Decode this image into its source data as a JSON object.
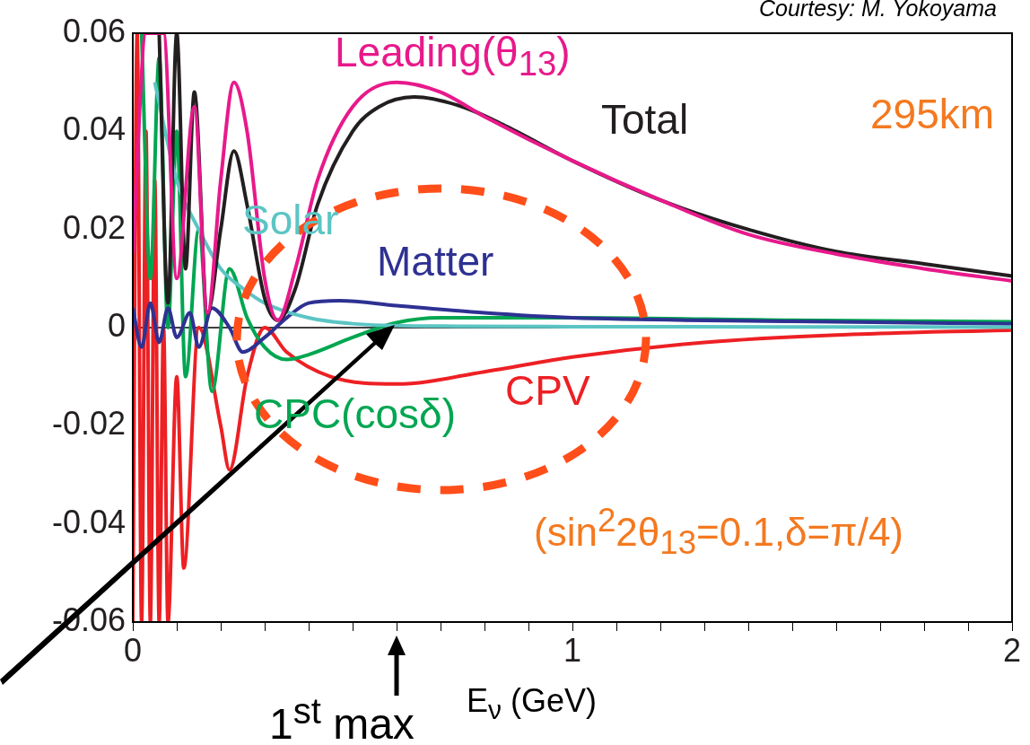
{
  "chart_data": {
    "type": "line",
    "xlabel": "E$_{ν}$ (GeV)",
    "xlim": [
      0,
      2
    ],
    "xticks": [
      0,
      {
        "value": 0.1,
        "label": null
      },
      {
        "value": 0.2,
        "label": null
      },
      {
        "value": 0.3,
        "label": null
      },
      {
        "value": 0.4,
        "label": null
      },
      {
        "value": 0.5,
        "label": null
      },
      {
        "value": 0.6,
        "label": null
      },
      {
        "value": 0.7,
        "label": null
      },
      {
        "value": 0.8,
        "label": null
      },
      {
        "value": 0.9,
        "label": null
      },
      1,
      {
        "value": 1.1,
        "label": null
      },
      {
        "value": 1.2,
        "label": null
      },
      {
        "value": 1.3,
        "label": null
      },
      {
        "value": 1.4,
        "label": null
      },
      {
        "value": 1.5,
        "label": null
      },
      {
        "value": 1.6,
        "label": null
      },
      {
        "value": 1.7,
        "label": null
      },
      {
        "value": 1.8,
        "label": null
      },
      {
        "value": 1.9,
        "label": null
      },
      2
    ],
    "ylim": [
      -0.06,
      0.06
    ],
    "yticks": [
      -0.06,
      -0.04,
      -0.02,
      0,
      0.02,
      0.04,
      0.06
    ],
    "grid": false,
    "legend": false,
    "marker": "none",
    "line_style": "solid",
    "ref_lines": [
      {
        "axis": "y",
        "value": 0,
        "color": "#000000"
      }
    ],
    "series": [
      {
        "name": "Leading(θ$_{13}$)",
        "color": "#e8198b",
        "x": [
          0,
          0.03,
          0.07,
          0.1,
          0.14,
          0.17,
          0.2,
          0.23,
          0.26,
          0.3,
          0.33,
          0.37,
          0.42,
          0.5,
          0.6,
          0.7,
          0.8,
          1,
          1.2,
          1.4,
          1.6,
          1.8,
          2
        ],
        "values": [
          0.015,
          0.06,
          0.06,
          0.01,
          0.045,
          0.003,
          0.03,
          0.05,
          0.04,
          0.01,
          0.0015,
          0.012,
          0.03,
          0.045,
          0.05,
          0.048,
          0.043,
          0.034,
          0.026,
          0.019,
          0.015,
          0.012,
          0.0095
        ]
      },
      {
        "name": "Total",
        "color": "#231f20",
        "x": [
          0.06,
          0.08,
          0.1,
          0.12,
          0.14,
          0.17,
          0.2,
          0.23,
          0.26,
          0.3,
          0.33,
          0.37,
          0.42,
          0.5,
          0.56,
          0.64,
          0.75,
          0.85,
          1,
          1.2,
          1.4,
          1.6,
          1.8,
          2
        ],
        "values": [
          0.06,
          0.005,
          0.06,
          0.012,
          0.048,
          0.003,
          0.02,
          0.036,
          0.025,
          0.006,
          0.0015,
          0.008,
          0.025,
          0.04,
          0.045,
          0.047,
          0.045,
          0.041,
          0.034,
          0.026,
          0.02,
          0.0155,
          0.013,
          0.0105
        ]
      },
      {
        "name": "Solar",
        "color": "#5bc5c4",
        "x": [
          0.05,
          0.1,
          0.15,
          0.2,
          0.25,
          0.3,
          0.4,
          0.5,
          0.7,
          1,
          2
        ],
        "values": [
          0.05,
          0.03,
          0.02,
          0.012,
          0.008,
          0.005,
          0.002,
          0.0008,
          0.0003,
          0.0002,
          0.0001
        ]
      },
      {
        "name": "Matter",
        "color": "#2e3192",
        "x": [
          0,
          0.02,
          0.04,
          0.06,
          0.08,
          0.1,
          0.13,
          0.15,
          0.18,
          0.22,
          0.25,
          0.3,
          0.35,
          0.4,
          0.47,
          0.6,
          0.8,
          1,
          1.5,
          2
        ],
        "values": [
          0.004,
          -0.004,
          0.005,
          -0.003,
          0.004,
          -0.002,
          0.003,
          -0.004,
          0.004,
          0,
          -0.005,
          -0.002,
          0.002,
          0.005,
          0.0055,
          0.0045,
          0.003,
          0.002,
          0.0013,
          0.0008
        ]
      },
      {
        "name": "CPC(cosδ)",
        "color": "#00a651",
        "x": [
          0.02,
          0.04,
          0.06,
          0.08,
          0.1,
          0.12,
          0.15,
          0.18,
          0.22,
          0.26,
          0.3,
          0.35,
          0.4,
          0.5,
          0.6,
          0.7,
          1,
          1.5,
          2
        ],
        "values": [
          0.06,
          0.01,
          0.055,
          0,
          0.04,
          -0.01,
          0.02,
          -0.013,
          0.012,
          0.002,
          -0.004,
          -0.0065,
          -0.0055,
          -0.002,
          0.001,
          0.002,
          0.002,
          0.0015,
          0.0012
        ]
      },
      {
        "name": "CPV",
        "color": "#ed2024",
        "x": [
          0,
          0.01,
          0.02,
          0.03,
          0.04,
          0.05,
          0.06,
          0.07,
          0.08,
          0.1,
          0.116,
          0.15,
          0.2,
          0.22,
          0.26,
          0.3,
          0.35,
          0.45,
          0.6,
          0.8,
          1,
          1.3,
          1.6,
          2
        ],
        "values": [
          -0.06,
          0.06,
          -0.06,
          0.04,
          -0.06,
          0.03,
          -0.06,
          0,
          -0.06,
          -0.01,
          -0.049,
          0,
          -0.02,
          -0.029,
          -0.01,
          0,
          -0.005,
          -0.01,
          -0.0115,
          -0.009,
          -0.006,
          -0.003,
          -0.0015,
          -0.0005
        ]
      }
    ],
    "annotations": [
      "295km",
      "(sin$^{2}$2θ$_{13}$=0.1,δ=π/4)",
      "1$^{st}$ max",
      "Courtesy: M. Yokoyama"
    ]
  }
}
